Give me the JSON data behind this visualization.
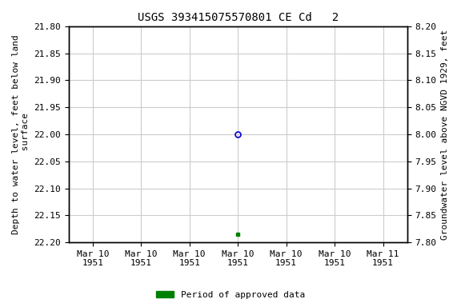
{
  "title": "USGS 393415075570801 CE Cd   2",
  "ylabel_left": "Depth to water level, feet below land\n surface",
  "ylabel_right": "Groundwater level above NGVD 1929, feet",
  "ylim_left": [
    22.2,
    21.8
  ],
  "ylim_right": [
    7.8,
    8.2
  ],
  "yticks_left": [
    21.8,
    21.85,
    21.9,
    21.95,
    22.0,
    22.05,
    22.1,
    22.15,
    22.2
  ],
  "yticks_right": [
    8.2,
    8.15,
    8.1,
    8.05,
    8.0,
    7.95,
    7.9,
    7.85,
    7.8
  ],
  "data_point_blue_x": 3,
  "data_point_blue_y": 22.0,
  "data_point_green_x": 3,
  "data_point_green_y": 22.185,
  "background_color": "#ffffff",
  "grid_color": "#cccccc",
  "plot_bg_color": "#ffffff",
  "blue_marker_color": "#0000cc",
  "green_marker_color": "#008000",
  "legend_label": "Period of approved data",
  "legend_color": "#008000",
  "font_family": "monospace",
  "title_fontsize": 10,
  "label_fontsize": 8,
  "tick_fontsize": 8,
  "xlim": [
    -0.5,
    6.5
  ],
  "xtick_positions": [
    0,
    1,
    2,
    3,
    4,
    5,
    6
  ],
  "xtick_labels": [
    "Mar 10\n1951",
    "Mar 10\n1951",
    "Mar 10\n1951",
    "Mar 10\n1951",
    "Mar 10\n1951",
    "Mar 10\n1951",
    "Mar 11\n1951"
  ]
}
